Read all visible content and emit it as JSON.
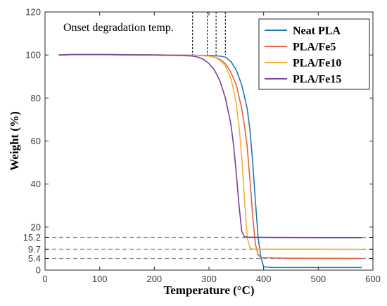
{
  "chart_data": {
    "type": "line",
    "title": "",
    "xlabel": "Temperature (°C)",
    "ylabel": "Weight (%)",
    "xlim": [
      0,
      600
    ],
    "ylim": [
      0,
      120
    ],
    "xticks": [
      0,
      100,
      200,
      300,
      400,
      500,
      600
    ],
    "xtick_labels": [
      "0",
      "100",
      "200",
      "300",
      "400",
      "500",
      "600"
    ],
    "yticks": [
      0,
      5.4,
      9.7,
      15.2,
      20,
      40,
      60,
      80,
      100,
      120
    ],
    "ytick_labels": [
      "0",
      "5.4",
      "9.7",
      "15.2",
      "20",
      "40",
      "60",
      "80",
      "100",
      "120"
    ],
    "grid": false,
    "legend_position": "top-right",
    "annotation": {
      "text": "Onset degradation temp.",
      "onset_x": [
        270,
        297,
        313,
        330
      ]
    },
    "reference_lines_y": [
      15.2,
      9.7,
      5.4
    ],
    "series": [
      {
        "name": "Neat PLA",
        "color": "#1f77b4",
        "x": [
          25,
          50,
          100,
          200,
          300,
          320,
          330,
          340,
          350,
          360,
          370,
          375,
          380,
          385,
          390,
          395,
          400,
          420,
          500,
          580
        ],
        "y": [
          100,
          100.2,
          100.2,
          100,
          99.8,
          99.5,
          99,
          97,
          93,
          86,
          75,
          65,
          50,
          32,
          15,
          6,
          1.5,
          1.2,
          1.2,
          1.2
        ]
      },
      {
        "name": "PLA/Fe5",
        "color": "#e8603c",
        "x": [
          25,
          50,
          100,
          200,
          280,
          300,
          310,
          320,
          330,
          340,
          350,
          360,
          365,
          370,
          375,
          380,
          385,
          390,
          395,
          400,
          450,
          580
        ],
        "y": [
          100,
          100.2,
          100.2,
          100,
          99.8,
          99.5,
          99,
          98,
          96,
          92,
          86,
          75,
          67,
          57,
          42,
          25,
          12,
          7,
          6,
          5.8,
          5.5,
          5.4
        ]
      },
      {
        "name": "PLA/Fe10",
        "color": "#f2b134",
        "x": [
          25,
          50,
          100,
          200,
          280,
          300,
          310,
          320,
          330,
          340,
          345,
          350,
          355,
          360,
          365,
          370,
          375,
          380,
          400,
          500,
          580
        ],
        "y": [
          100,
          100.2,
          100.2,
          100,
          99.8,
          99.5,
          99,
          97.5,
          95,
          89,
          84,
          77,
          67,
          52,
          33,
          15,
          10.5,
          9.8,
          9.7,
          9.7,
          9.6
        ]
      },
      {
        "name": "PLA/Fe15",
        "color": "#7b3f98",
        "x": [
          25,
          50,
          100,
          200,
          250,
          270,
          280,
          290,
          300,
          310,
          320,
          330,
          340,
          345,
          350,
          355,
          360,
          365,
          370,
          400,
          500,
          580
        ],
        "y": [
          100,
          100.2,
          100.2,
          100,
          99.8,
          99.5,
          99,
          98,
          96,
          93,
          88,
          80,
          68,
          58,
          45,
          30,
          18,
          15.5,
          15.3,
          15.2,
          15.1,
          15.1
        ]
      }
    ]
  }
}
